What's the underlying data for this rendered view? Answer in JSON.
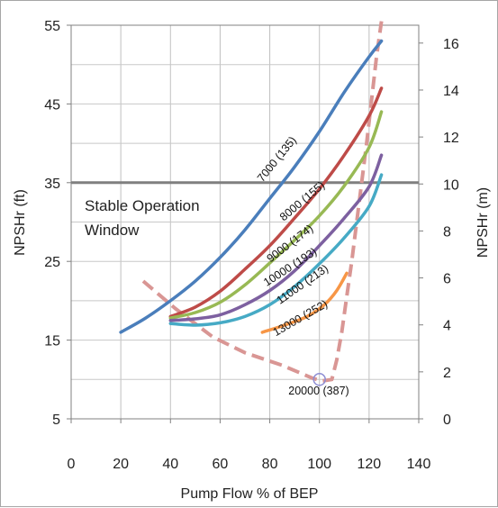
{
  "chart_data": {
    "type": "line",
    "xlabel": "Pump Flow % of BEP",
    "ylabel": "NPSHr (ft)",
    "y2label": "NPSHr (m)",
    "xlim": [
      0,
      140
    ],
    "ylim": [
      5,
      55
    ],
    "y2lim": [
      0,
      16.76
    ],
    "x_ticks": [
      "0",
      "20",
      "40",
      "60",
      "80",
      "100",
      "120",
      "140"
    ],
    "y_ticks": [
      "5",
      "15",
      "25",
      "35",
      "45",
      "55"
    ],
    "y2_ticks": [
      "0",
      "2",
      "4",
      "6",
      "8",
      "10",
      "12",
      "14",
      "16"
    ],
    "grid": true,
    "reference_line_y": 35,
    "series": [
      {
        "name": "7000 (135)",
        "color": "#4a7ebb",
        "points": [
          [
            20,
            16
          ],
          [
            30,
            17.8
          ],
          [
            40,
            20
          ],
          [
            50,
            22.5
          ],
          [
            60,
            25.5
          ],
          [
            70,
            29
          ],
          [
            80,
            33
          ],
          [
            90,
            37
          ],
          [
            100,
            41.5
          ],
          [
            110,
            46.5
          ],
          [
            120,
            51
          ],
          [
            125,
            53
          ]
        ]
      },
      {
        "name": "8000 (155)",
        "color": "#be4b48",
        "points": [
          [
            40,
            18
          ],
          [
            50,
            19.2
          ],
          [
            60,
            21.2
          ],
          [
            70,
            24
          ],
          [
            80,
            27
          ],
          [
            90,
            30.5
          ],
          [
            100,
            34.2
          ],
          [
            110,
            38.5
          ],
          [
            120,
            43.5
          ],
          [
            125,
            47
          ]
        ]
      },
      {
        "name": "9000 (174)",
        "color": "#98b954",
        "points": [
          [
            40,
            17.8
          ],
          [
            50,
            18.5
          ],
          [
            60,
            19.8
          ],
          [
            70,
            22
          ],
          [
            80,
            24.8
          ],
          [
            90,
            27.7
          ],
          [
            100,
            30.8
          ],
          [
            110,
            34.6
          ],
          [
            120,
            39.5
          ],
          [
            125,
            44
          ]
        ]
      },
      {
        "name": "10000 (193)",
        "color": "#7d60a0",
        "points": [
          [
            40,
            17.5
          ],
          [
            50,
            17.7
          ],
          [
            60,
            18.2
          ],
          [
            70,
            19.5
          ],
          [
            80,
            21.3
          ],
          [
            90,
            23.8
          ],
          [
            100,
            27
          ],
          [
            110,
            30.5
          ],
          [
            120,
            34.5
          ],
          [
            125,
            38.5
          ]
        ]
      },
      {
        "name": "11000 (213)",
        "color": "#46aac5",
        "points": [
          [
            40,
            17.1
          ],
          [
            50,
            16.9
          ],
          [
            60,
            17.2
          ],
          [
            70,
            18
          ],
          [
            80,
            19.5
          ],
          [
            90,
            21.8
          ],
          [
            100,
            24.7
          ],
          [
            110,
            28
          ],
          [
            120,
            32
          ],
          [
            125,
            36
          ]
        ]
      },
      {
        "name": "13000 (252)",
        "color": "#f79646",
        "points": [
          [
            77,
            16
          ],
          [
            85,
            16.8
          ],
          [
            95,
            18
          ],
          [
            102,
            19.5
          ],
          [
            107,
            21.3
          ],
          [
            111,
            23.5
          ]
        ]
      }
    ],
    "operating_window": {
      "color": "#d99694",
      "points": [
        [
          29,
          22.5
        ],
        [
          42,
          19
        ],
        [
          57,
          15.4
        ],
        [
          70,
          13.4
        ],
        [
          85,
          11.8
        ],
        [
          97,
          10.2
        ],
        [
          101,
          9.8
        ],
        [
          105,
          10
        ],
        [
          107,
          12.5
        ],
        [
          109,
          16
        ],
        [
          111,
          20.5
        ],
        [
          113,
          25
        ],
        [
          115,
          30
        ],
        [
          117,
          35
        ],
        [
          119,
          40
        ],
        [
          121,
          45.5
        ],
        [
          123,
          51
        ],
        [
          125,
          55.5
        ]
      ]
    },
    "marker_point": {
      "x": 100,
      "y": 10,
      "label": "20000 (387)"
    },
    "annotation": [
      "Stable Operation",
      "Window"
    ],
    "series_labels": [
      {
        "text": "7000 (135)",
        "x": 84,
        "y": 37.7,
        "angle": -51
      },
      {
        "text": "8000 (155)",
        "x": 94,
        "y": 32.3,
        "angle": -40
      },
      {
        "text": "9000 (174)",
        "x": 89,
        "y": 26.9,
        "angle": -37
      },
      {
        "text": "10000 (193)",
        "x": 89,
        "y": 23.9,
        "angle": -33
      },
      {
        "text": "11000 (213)",
        "x": 94,
        "y": 21.7,
        "angle": -35
      },
      {
        "text": "13000 (252)",
        "x": 93,
        "y": 17.4,
        "angle": -30
      }
    ]
  }
}
